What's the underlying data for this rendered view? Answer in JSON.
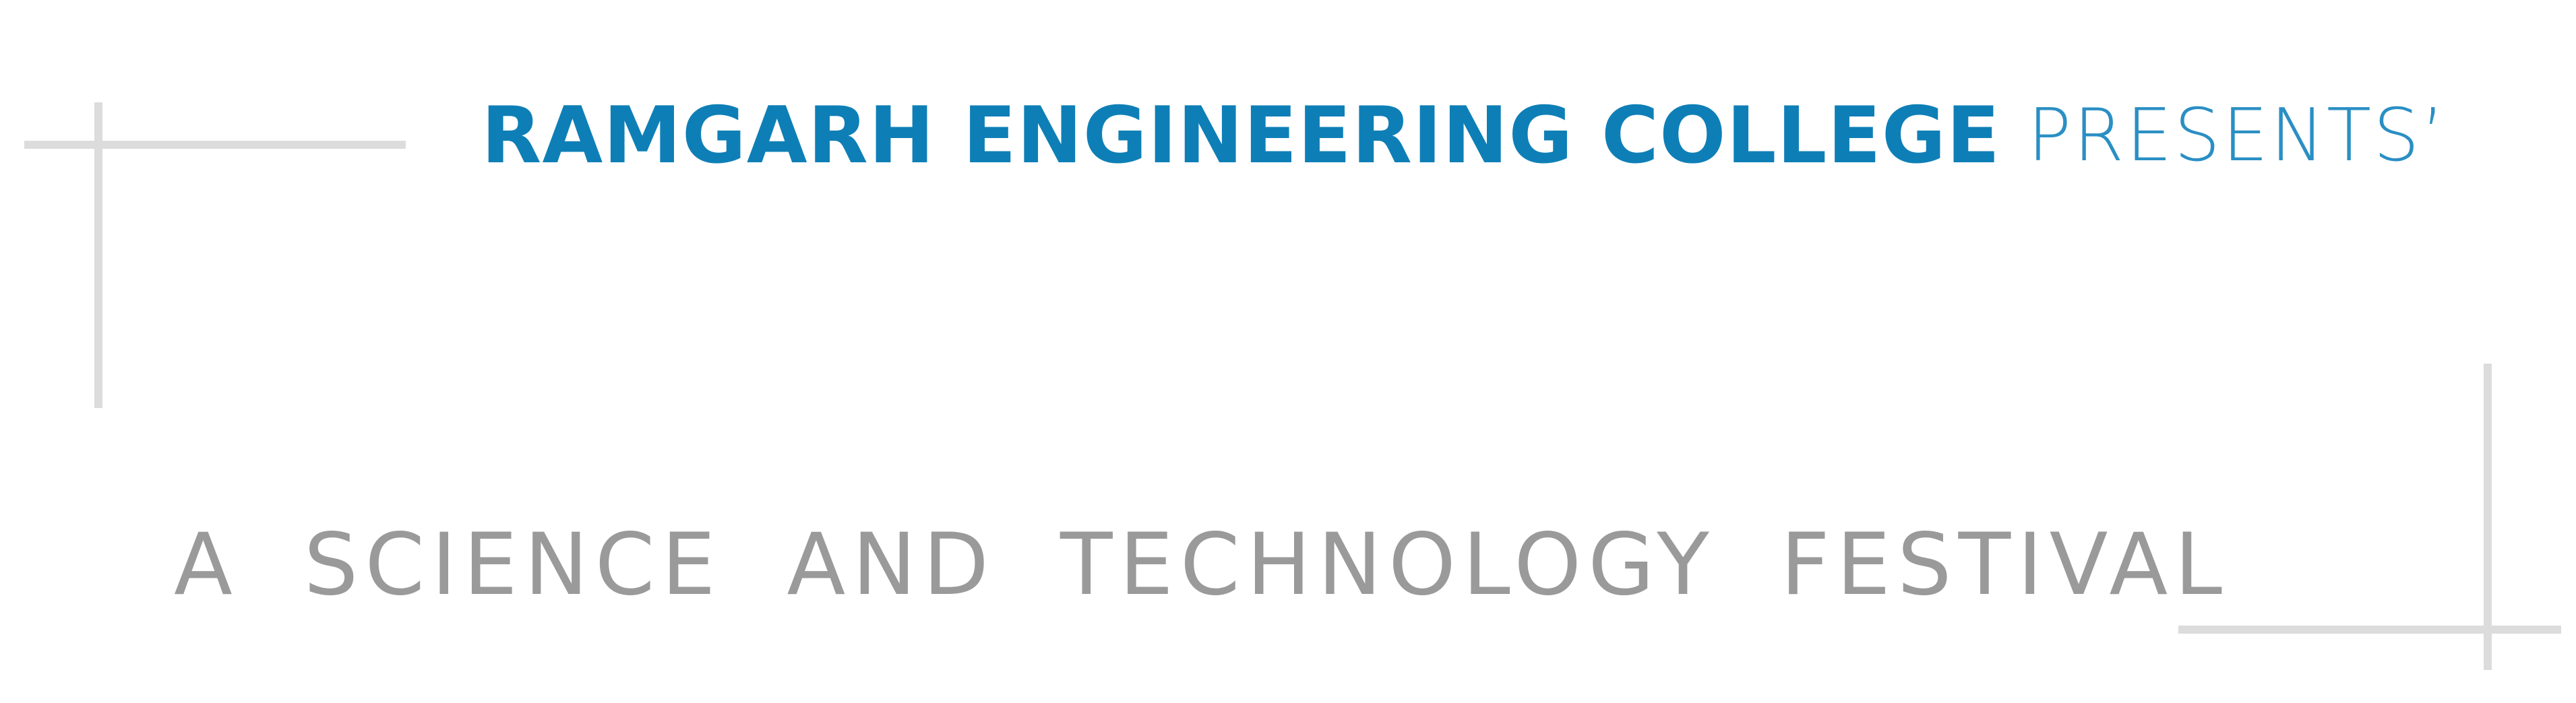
{
  "header": {
    "college_name": "RAMGARH ENGINEERING COLLEGE",
    "presents": "PRESENTS’"
  },
  "tagline": {
    "text": "a science and technology festival"
  },
  "colors": {
    "header_blue": "#0e7fb6",
    "tagline_gray": "#9a9a9a",
    "marks_gray": "#dcdcdc",
    "background": "#ffffff"
  }
}
